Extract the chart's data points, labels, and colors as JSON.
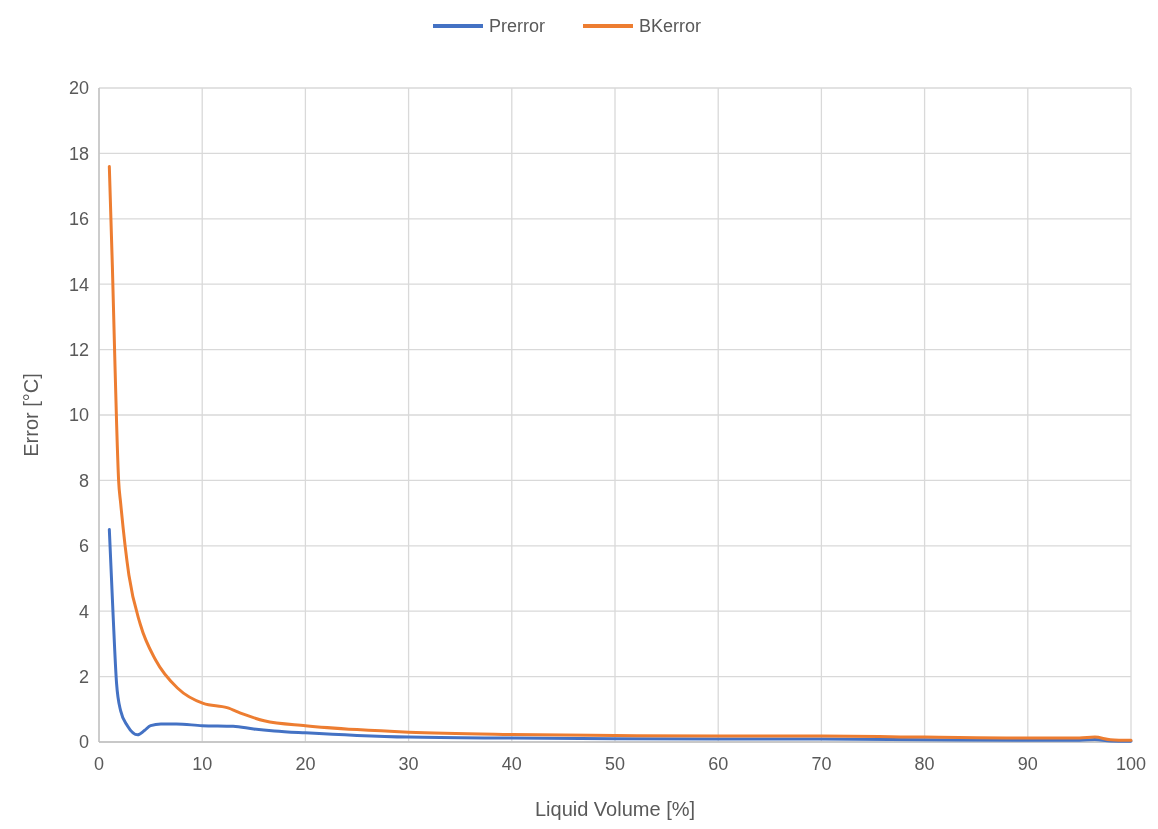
{
  "chart_data": {
    "type": "line",
    "xlabel": "Liquid Volume [%]",
    "ylabel": "Error [°C]",
    "xlim": [
      0,
      100
    ],
    "xticks": [
      0,
      10,
      20,
      30,
      40,
      50,
      60,
      70,
      80,
      90,
      100
    ],
    "ylim": [
      0,
      20
    ],
    "yticks": [
      0,
      2,
      4,
      6,
      8,
      10,
      12,
      14,
      16,
      18,
      20
    ],
    "grid": true,
    "legend": "top",
    "marker": "none",
    "line_style": "solid",
    "series": [
      {
        "name": "Prerror",
        "color": "#4472c4",
        "x": [
          1,
          1.35,
          1.7,
          2.1,
          2.75,
          3.75,
          4.4,
          5,
          6,
          7.5,
          10,
          13,
          15,
          17,
          20,
          25,
          30,
          40,
          50,
          60,
          70,
          80,
          90,
          95,
          96.5,
          98,
          100
        ],
        "values": [
          6.5,
          4.0,
          1.8,
          0.95,
          0.5,
          0.22,
          0.35,
          0.5,
          0.55,
          0.55,
          0.5,
          0.48,
          0.4,
          0.34,
          0.28,
          0.2,
          0.15,
          0.12,
          0.1,
          0.09,
          0.09,
          0.07,
          0.05,
          0.05,
          0.08,
          0.03,
          0.02
        ]
      },
      {
        "name": "BKerror",
        "color": "#ed7d31",
        "x": [
          1,
          1.3,
          1.5,
          1.7,
          1.9,
          2.1,
          2.9,
          4,
          5.5,
          7.6,
          10.1,
          12.4,
          14,
          16,
          20,
          25,
          30,
          40,
          50,
          60,
          70,
          80,
          90,
          95,
          96.5,
          98,
          100
        ],
        "values": [
          17.6,
          14.5,
          12.1,
          9.8,
          8.0,
          7.3,
          5.1,
          3.6,
          2.5,
          1.65,
          1.18,
          1.05,
          0.85,
          0.65,
          0.5,
          0.38,
          0.3,
          0.23,
          0.2,
          0.18,
          0.18,
          0.15,
          0.12,
          0.12,
          0.15,
          0.07,
          0.05
        ]
      }
    ]
  }
}
